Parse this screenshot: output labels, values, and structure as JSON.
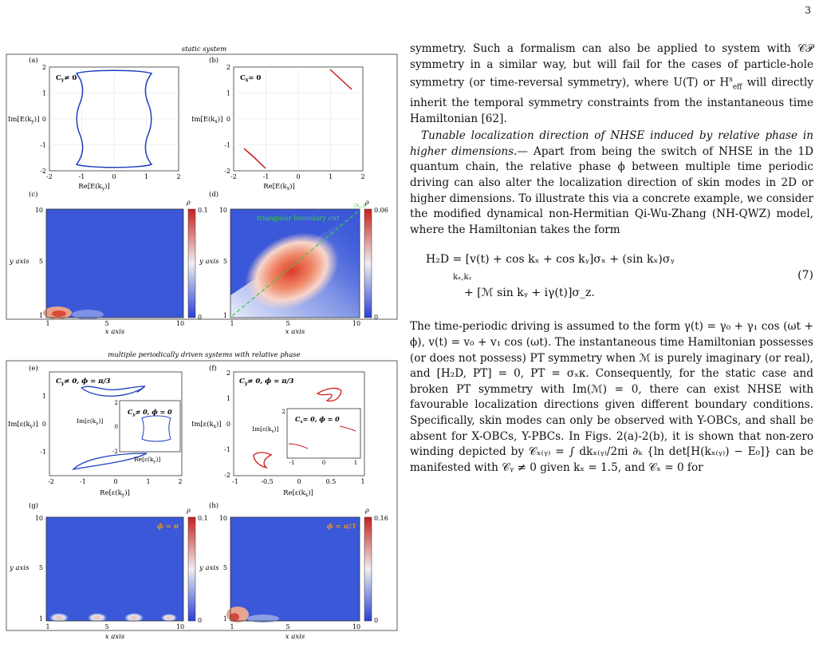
{
  "page_number": "3",
  "figure": {
    "top_title": "static  system",
    "bottom_title": "multiple periodically driven systems  with relative phase",
    "panels": {
      "a": {
        "label": "(a)",
        "note": "C",
        "note_sub": "y",
        "note_rest": "≠ 0",
        "ylabel": "Im[E(k",
        "ylabel_sub": "y",
        "ylabel_end": ")]",
        "xlabel": "Re[E(k",
        "xlabel_sub": "y",
        "xlabel_end": ")]",
        "xticks": [
          "-2",
          "-1",
          "0",
          "1",
          "2"
        ],
        "yticks": [
          "2",
          "1",
          "0",
          "-1",
          "-2"
        ]
      },
      "b": {
        "label": "(b)",
        "note": "C",
        "note_sub": "x",
        "note_rest": "= 0",
        "ylabel": "Im[E(k",
        "ylabel_sub": "x",
        "ylabel_end": ")]",
        "xlabel": "Re[E(k",
        "xlabel_sub": "x",
        "xlabel_end": ")]",
        "xticks": [
          "-2",
          "-1",
          "0",
          "1",
          "2"
        ],
        "yticks": [
          "2",
          "1",
          "0",
          "-1",
          "-2"
        ]
      },
      "c": {
        "label": "(c)",
        "ylabel": "y axis",
        "xlabel": "x axis",
        "xticks": [
          "1",
          "5",
          "10"
        ],
        "yticks": [
          "10",
          "5",
          "1"
        ],
        "cb_label": "ρ",
        "cb_max": "0.1",
        "cb_min": "0"
      },
      "d": {
        "label": "(d)",
        "ylabel": "y axis",
        "xlabel": "x axis",
        "xticks": [
          "1",
          "5",
          "10"
        ],
        "yticks": [
          "10",
          "5",
          "1"
        ],
        "cb_label": "ρ",
        "cb_max": "0.06",
        "cb_min": "0",
        "annotation": "triangular  boundary cut",
        "corner_label": "(x",
        "corner_sub": "c",
        "corner_end": ",y"
      },
      "e": {
        "label": "(e)",
        "note": "C",
        "note_sub": "y",
        "note_rest": "≠ 0, ϕ = π/3",
        "inset_note": "C",
        "inset_sub": "y",
        "inset_rest": "≠ 0, ϕ = 0",
        "ylabel": "Im[ε(k",
        "ylabel_sub": "y",
        "ylabel_end": ")]",
        "xlabel": "Re[ε(k",
        "xlabel_sub": "y",
        "xlabel_end": ")]",
        "xticks": [
          "-2",
          "-1",
          "0",
          "1",
          "2"
        ],
        "yticks": [
          "1",
          "0",
          "-1"
        ],
        "inset_ylabel": "Im[ε(k",
        "inset_xlabel": "Re[ε(k",
        "inset_yticks": [
          "2",
          "0",
          "-2"
        ]
      },
      "f": {
        "label": "(f)",
        "note": "C",
        "note_sub": "y",
        "note_rest": "≠ 0, ϕ = π/3",
        "inset_note": "C",
        "inset_sub": "x",
        "inset_rest": "= 0, ϕ = 0",
        "ylabel": "Im[ε(k",
        "ylabel_sub": "x",
        "ylabel_end": ")]",
        "xlabel": "Re[ε(k",
        "xlabel_sub": "x",
        "xlabel_end": ")]",
        "xticks": [
          "-1",
          "-0.5",
          "0",
          "0.5",
          "1"
        ],
        "yticks": [
          "2",
          "1",
          "0",
          "-1",
          "-2"
        ],
        "inset_ylabel": "Im[ε(k",
        "inset_xticks": [
          "-1",
          "0",
          "1"
        ],
        "inset_yticks": [
          "2"
        ]
      },
      "g": {
        "label": "(g)",
        "ylabel": "y axis",
        "xlabel": "x axis",
        "xticks": [
          "1",
          "5",
          "10"
        ],
        "yticks": [
          "10",
          "5",
          "1"
        ],
        "cb_label": "ρ",
        "cb_max": "0.1",
        "cb_min": "0",
        "phase": "ϕ = π"
      },
      "h": {
        "label": "(h)",
        "ylabel": "y axis",
        "xlabel": "x axis",
        "xticks": [
          "1",
          "5",
          "10"
        ],
        "yticks": [
          "10",
          "5",
          "1"
        ],
        "cb_label": "ρ",
        "cb_max": "0.16",
        "cb_min": "0",
        "phase": "ϕ = π/3"
      }
    },
    "colors": {
      "spectrum_blue": "#1f3fbf",
      "spectrum_red": "#cc1a1a",
      "map_low": "#3a58d8",
      "map_high": "#d63a2e",
      "dashed_green": "#3ccf3c",
      "phase_orange": "#e8961a"
    }
  },
  "text": {
    "p1": "symmetry. Such a formalism can also be applied to system with 𝒞𝒫 symmetry in a similar way, but will fail for the cases of particle-hole symmetry (or time-reversal symmetry), where U(T) or H",
    "p1_sup": "s",
    "p1_sub": "eff",
    "p1_end": " will directly inherit the temporal symmetry constraints from the instantaneous time Hamiltonian [62].",
    "p2_head": "Tunable localization direction of NHSE induced by relative phase in higher dimensions.—",
    "p2": " Apart from being the switch of NHSE in the 1D quantum chain, the relative phase ϕ between multiple time periodic driving can also alter the localization direction of skin modes in 2D or higher dimensions. To illustrate this via a concrete example, we consider the modified dynamical non-Hermitian Qi-Wu-Zhang (NH-QWZ) model, where the Hamiltonian takes the form",
    "eq_line1": "H₂D = [v(t) + cos kₓ + cos kᵧ]σₓ + (sin kₓ)σᵧ",
    "eq_sum_sub": "kₓ,kᵧ",
    "eq_line2": "+ [ℳ sin kᵧ + iγ(t)]σ_z.",
    "eq_num": "(7)",
    "p3": "The time-periodic driving is assumed to the form γ(t) = γ₀ + γ₁ cos (ωt + ϕ), v(t) = v₀ + v₁ cos (ωt). The instantaneous time Hamiltonian possesses (or does not possess) PT symmetry when ℳ is purely imaginary (or real), and [H₂D, PT] = 0, PT = σₓκ. Consequently, for the static case and broken PT symmetry with Im(ℳ) = 0, there can exist NHSE with favourable localization directions given different boundary conditions. Specifically, skin modes can only be observed with Y-OBCs, and shall be absent for X-OBCs, Y-PBCs. In Figs. 2(a)-2(b), it is shown that non-zero winding depicted by 𝒞ₓ₍ᵧ₎ = ∫ dkₓ₍ᵧ₎/2πi ∂ₖ {ln det[H(kₓ₍ᵧ₎) − E₀]} can be manifested with 𝒞ᵧ ≠ 0 given kₓ = 1.5, and 𝒞ₓ = 0 for"
  }
}
